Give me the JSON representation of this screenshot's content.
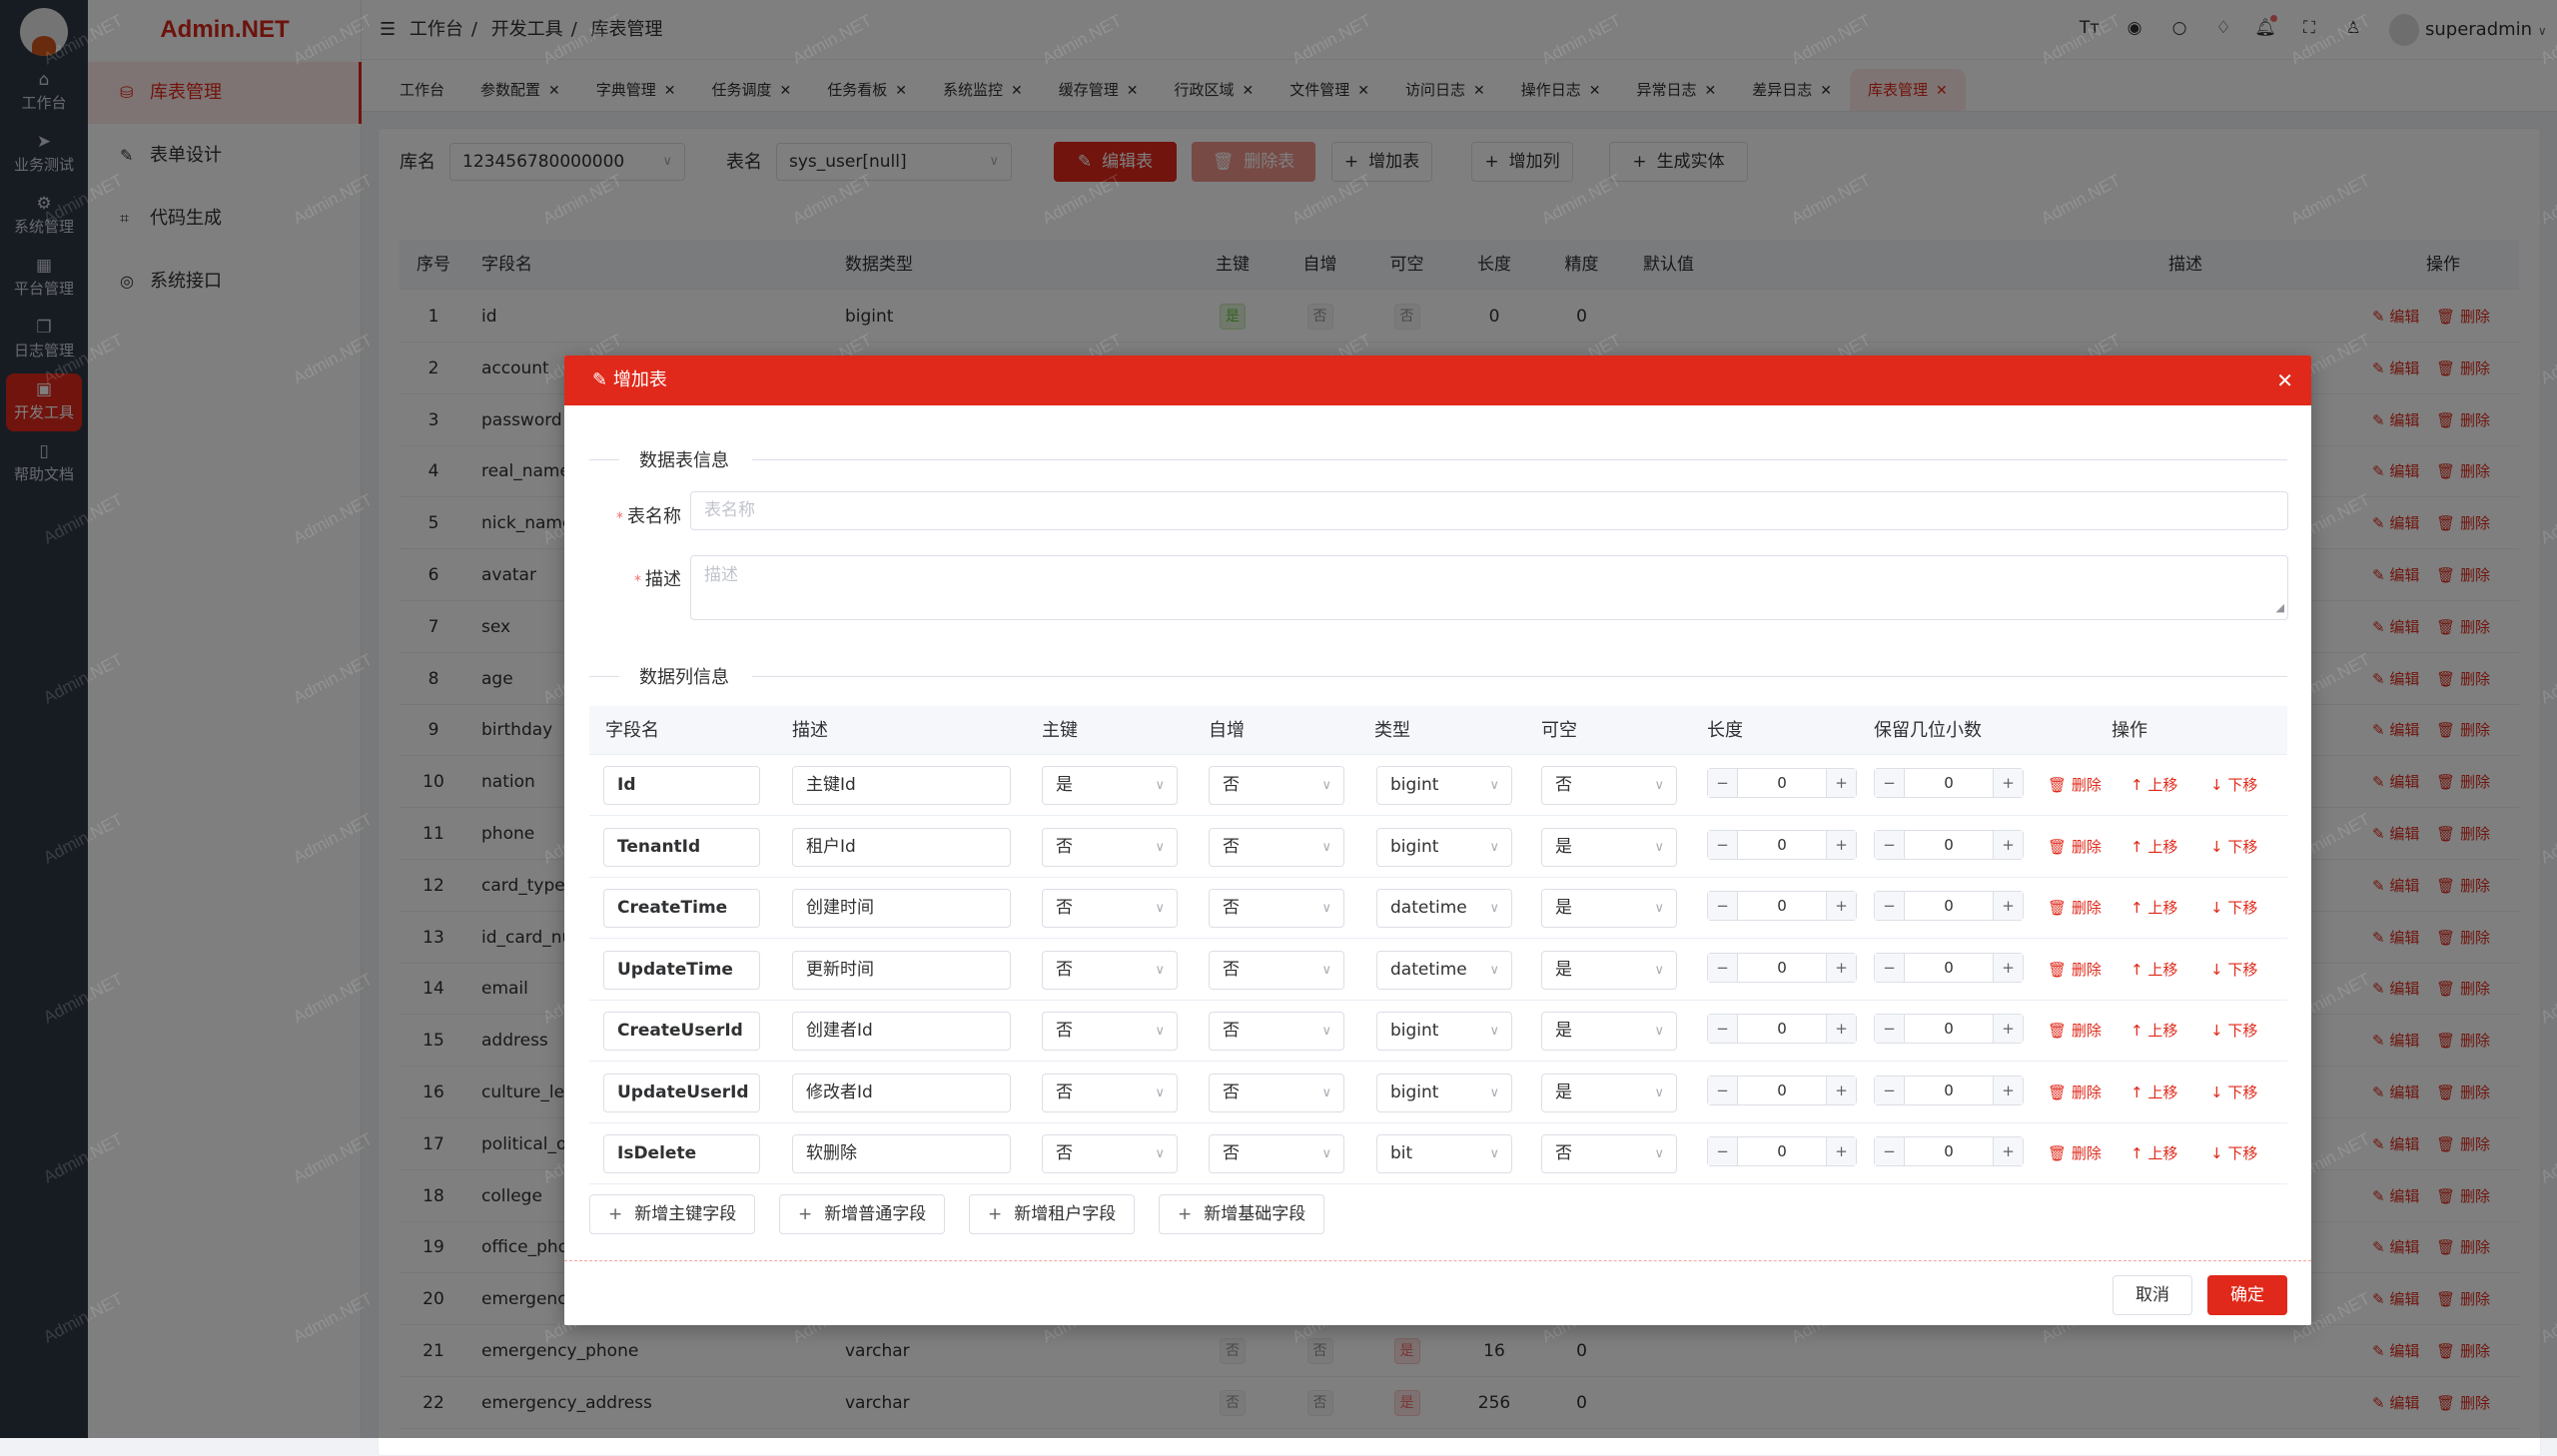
{
  "brand": "Admin.NET",
  "watermark": "Admin.NET",
  "rail": [
    {
      "label": "工作台",
      "icon": "home-icon"
    },
    {
      "label": "业务测试",
      "icon": "send-icon"
    },
    {
      "label": "系统管理",
      "icon": "gear-icon"
    },
    {
      "label": "平台管理",
      "icon": "grid-icon"
    },
    {
      "label": "日志管理",
      "icon": "copy-icon"
    },
    {
      "label": "开发工具",
      "icon": "chip-icon",
      "active": true
    },
    {
      "label": "帮助文档",
      "icon": "book-icon"
    }
  ],
  "submenu": [
    {
      "label": "库表管理",
      "icon": "database-icon",
      "active": true
    },
    {
      "label": "表单设计",
      "icon": "edit-icon"
    },
    {
      "label": "代码生成",
      "icon": "crop-icon"
    },
    {
      "label": "系统接口",
      "icon": "lifebuoy-icon"
    }
  ],
  "header": {
    "breadcrumb": [
      "工作台",
      "开发工具",
      "库表管理"
    ],
    "user": "superadmin",
    "icons": [
      "font-size-icon",
      "language-icon",
      "search-icon",
      "skin-icon",
      "bell-icon",
      "fullscreen-icon",
      "user-icon"
    ]
  },
  "tabs": [
    {
      "label": "工作台"
    },
    {
      "label": "参数配置",
      "close": true
    },
    {
      "label": "字典管理",
      "close": true
    },
    {
      "label": "任务调度",
      "close": true
    },
    {
      "label": "任务看板",
      "close": true
    },
    {
      "label": "系统监控",
      "close": true
    },
    {
      "label": "缓存管理",
      "close": true
    },
    {
      "label": "行政区域",
      "close": true
    },
    {
      "label": "文件管理",
      "close": true
    },
    {
      "label": "访问日志",
      "close": true
    },
    {
      "label": "操作日志",
      "close": true
    },
    {
      "label": "异常日志",
      "close": true
    },
    {
      "label": "差异日志",
      "close": true
    },
    {
      "label": "库表管理",
      "close": true,
      "active": true
    }
  ],
  "toolbar": {
    "db_label": "库名",
    "db_value": "123456780000000",
    "table_label": "表名",
    "table_value": "sys_user[null]",
    "edit_table": "编辑表",
    "delete_table": "删除表",
    "add_table": "增加表",
    "add_column": "增加列",
    "gen_entity": "生成实体"
  },
  "bg_table": {
    "headers": [
      "序号",
      "字段名",
      "数据类型",
      "主键",
      "自增",
      "可空",
      "长度",
      "精度",
      "默认值",
      "描述",
      "操作"
    ],
    "edit": "编辑",
    "delete": "删除",
    "rows": [
      {
        "no": "1",
        "name": "id",
        "type": "bigint",
        "pk": "是",
        "inc": "否",
        "nullable": "否",
        "len": "0",
        "prec": "0"
      },
      {
        "no": "2",
        "name": "account"
      },
      {
        "no": "3",
        "name": "password"
      },
      {
        "no": "4",
        "name": "real_name"
      },
      {
        "no": "5",
        "name": "nick_name"
      },
      {
        "no": "6",
        "name": "avatar"
      },
      {
        "no": "7",
        "name": "sex"
      },
      {
        "no": "8",
        "name": "age"
      },
      {
        "no": "9",
        "name": "birthday"
      },
      {
        "no": "10",
        "name": "nation"
      },
      {
        "no": "11",
        "name": "phone"
      },
      {
        "no": "12",
        "name": "card_type"
      },
      {
        "no": "13",
        "name": "id_card_nu"
      },
      {
        "no": "14",
        "name": "email"
      },
      {
        "no": "15",
        "name": "address"
      },
      {
        "no": "16",
        "name": "culture_lev"
      },
      {
        "no": "17",
        "name": "political_ou"
      },
      {
        "no": "18",
        "name": "college"
      },
      {
        "no": "19",
        "name": "office_phon"
      },
      {
        "no": "20",
        "name": "emergency"
      },
      {
        "no": "21",
        "name": "emergency_phone",
        "type": "varchar",
        "pk": "否",
        "inc": "否",
        "nullable": "是",
        "len": "16",
        "prec": "0"
      },
      {
        "no": "22",
        "name": "emergency_address",
        "type": "varchar",
        "pk": "否",
        "inc": "否",
        "nullable": "是",
        "len": "256",
        "prec": "0"
      }
    ]
  },
  "modal": {
    "title": "增加表",
    "section_table": "数据表信息",
    "name_label": "表名称",
    "name_placeholder": "表名称",
    "desc_label": "描述",
    "desc_placeholder": "描述",
    "section_columns": "数据列信息",
    "headers": [
      "字段名",
      "描述",
      "主键",
      "自增",
      "类型",
      "可空",
      "长度",
      "保留几位小数",
      "操作"
    ],
    "op_delete": "删除",
    "op_up": "上移",
    "op_down": "下移",
    "rows": [
      {
        "field": "Id",
        "desc": "主键Id",
        "pk": "是",
        "inc": "否",
        "type": "bigint",
        "nullable": "否",
        "len": "0",
        "dec": "0"
      },
      {
        "field": "TenantId",
        "desc": "租户Id",
        "pk": "否",
        "inc": "否",
        "type": "bigint",
        "nullable": "是",
        "len": "0",
        "dec": "0"
      },
      {
        "field": "CreateTime",
        "desc": "创建时间",
        "pk": "否",
        "inc": "否",
        "type": "datetime",
        "nullable": "是",
        "len": "0",
        "dec": "0"
      },
      {
        "field": "UpdateTime",
        "desc": "更新时间",
        "pk": "否",
        "inc": "否",
        "type": "datetime",
        "nullable": "是",
        "len": "0",
        "dec": "0"
      },
      {
        "field": "CreateUserId",
        "desc": "创建者Id",
        "pk": "否",
        "inc": "否",
        "type": "bigint",
        "nullable": "是",
        "len": "0",
        "dec": "0"
      },
      {
        "field": "UpdateUserId",
        "desc": "修改者Id",
        "pk": "否",
        "inc": "否",
        "type": "bigint",
        "nullable": "是",
        "len": "0",
        "dec": "0"
      },
      {
        "field": "IsDelete",
        "desc": "软删除",
        "pk": "否",
        "inc": "否",
        "type": "bit",
        "nullable": "否",
        "len": "0",
        "dec": "0"
      }
    ],
    "add_buttons": [
      "新增主键字段",
      "新增普通字段",
      "新增租户字段",
      "新增基础字段"
    ],
    "cancel": "取消",
    "confirm": "确定"
  },
  "colors": {
    "accent": "#e0291a",
    "success": "#67c23a"
  }
}
